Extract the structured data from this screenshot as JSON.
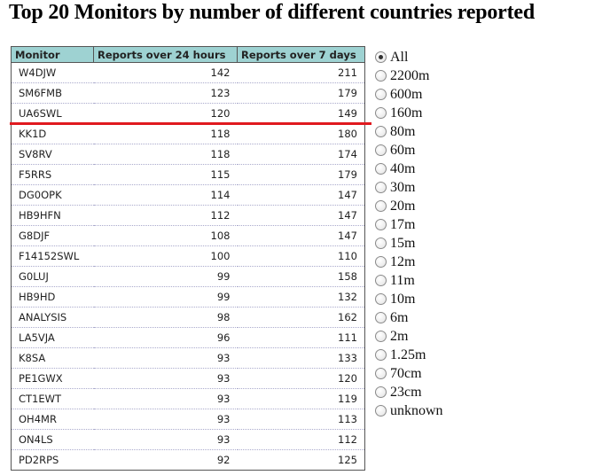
{
  "title": "Top 20 Monitors by number of different countries reported",
  "table": {
    "headers": [
      "Monitor",
      "Reports over 24 hours",
      "Reports over 7 days"
    ],
    "rows": [
      {
        "monitor": "W4DJW",
        "h24": "142",
        "d7": "211"
      },
      {
        "monitor": "SM6FMB",
        "h24": "123",
        "d7": "179"
      },
      {
        "monitor": "UA6SWL",
        "h24": "120",
        "d7": "149"
      },
      {
        "monitor": "KK1D",
        "h24": "118",
        "d7": "180"
      },
      {
        "monitor": "SV8RV",
        "h24": "118",
        "d7": "174"
      },
      {
        "monitor": "F5RRS",
        "h24": "115",
        "d7": "179"
      },
      {
        "monitor": "DG0OPK",
        "h24": "114",
        "d7": "147"
      },
      {
        "monitor": "HB9HFN",
        "h24": "112",
        "d7": "147"
      },
      {
        "monitor": "G8DJF",
        "h24": "108",
        "d7": "147"
      },
      {
        "monitor": "F14152SWL",
        "h24": "100",
        "d7": "110"
      },
      {
        "monitor": "G0LUJ",
        "h24": "99",
        "d7": "158"
      },
      {
        "monitor": "HB9HD",
        "h24": "99",
        "d7": "132"
      },
      {
        "monitor": "ANALYSIS",
        "h24": "98",
        "d7": "162"
      },
      {
        "monitor": "LA5VJA",
        "h24": "96",
        "d7": "111"
      },
      {
        "monitor": "K8SA",
        "h24": "93",
        "d7": "133"
      },
      {
        "monitor": "PE1GWX",
        "h24": "93",
        "d7": "120"
      },
      {
        "monitor": "CT1EWT",
        "h24": "93",
        "d7": "119"
      },
      {
        "monitor": "OH4MR",
        "h24": "93",
        "d7": "113"
      },
      {
        "monitor": "ON4LS",
        "h24": "93",
        "d7": "112"
      },
      {
        "monitor": "PD2RPS",
        "h24": "92",
        "d7": "125"
      }
    ]
  },
  "bands": {
    "selected": "All",
    "options": [
      "All",
      "2200m",
      "600m",
      "160m",
      "80m",
      "60m",
      "40m",
      "30m",
      "20m",
      "17m",
      "15m",
      "12m",
      "11m",
      "10m",
      "6m",
      "2m",
      "1.25m",
      "70cm",
      "23cm",
      "unknown"
    ]
  },
  "colors": {
    "header_bg": "#9ed2d2",
    "highlight_line": "#e0191f"
  }
}
